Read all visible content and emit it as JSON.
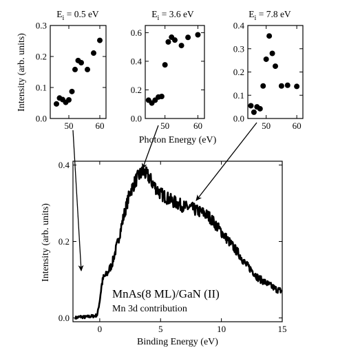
{
  "figure": {
    "inset_shared_xlabel": "Photon Energy (eV)",
    "inset_shared_ylabel": "Intensity (arb. units)",
    "arrows": "each inset linked to its initial-state energy on the main spectrum"
  },
  "chart_data": [
    {
      "type": "scatter",
      "title_prefix": "E",
      "title_sub": "i",
      "title_value": " = 0.5 eV",
      "xlim": [
        44,
        62
      ],
      "ylim": [
        0,
        0.3
      ],
      "xticks": [
        50,
        60
      ],
      "xtick_labels": [
        "50",
        "60"
      ],
      "yticks": [
        0,
        0.1,
        0.2,
        0.3
      ],
      "ytick_labels": [
        "0.0",
        "0.1",
        "0.2",
        "0.3"
      ],
      "x": [
        46,
        47,
        48,
        49,
        50,
        51,
        52,
        53,
        54,
        56,
        58,
        60
      ],
      "y": [
        0.047,
        0.066,
        0.061,
        0.052,
        0.06,
        0.087,
        0.158,
        0.187,
        0.18,
        0.158,
        0.211,
        0.252
      ]
    },
    {
      "type": "scatter",
      "title_prefix": "E",
      "title_sub": "i",
      "title_value": " = 3.6 eV",
      "xlim": [
        44,
        62
      ],
      "ylim": [
        0,
        0.65
      ],
      "xticks": [
        50,
        60
      ],
      "xtick_labels": [
        "50",
        "60"
      ],
      "yticks": [
        0,
        0.2,
        0.4,
        0.6
      ],
      "ytick_labels": [
        "0.0",
        "0.2",
        "0.4",
        "0.6"
      ],
      "x": [
        45,
        46,
        47,
        48,
        49,
        50,
        51,
        52,
        53,
        55,
        57,
        60
      ],
      "y": [
        0.128,
        0.108,
        0.128,
        0.15,
        0.154,
        0.375,
        0.535,
        0.568,
        0.548,
        0.51,
        0.567,
        0.585
      ]
    },
    {
      "type": "scatter",
      "title_prefix": "E",
      "title_sub": "i",
      "title_value": " = 7.8 eV",
      "xlim": [
        44,
        62
      ],
      "ylim": [
        0,
        0.4
      ],
      "xticks": [
        50,
        60
      ],
      "xtick_labels": [
        "50",
        "60"
      ],
      "yticks": [
        0,
        0.1,
        0.2,
        0.3,
        0.4
      ],
      "ytick_labels": [
        "0.0",
        "0.1",
        "0.2",
        "0.3",
        "0.4"
      ],
      "x": [
        45,
        46,
        47,
        48,
        49,
        50,
        51,
        52,
        53,
        55,
        57,
        60
      ],
      "y": [
        0.055,
        0.027,
        0.05,
        0.042,
        0.14,
        0.255,
        0.355,
        0.28,
        0.225,
        0.14,
        0.143,
        0.138
      ]
    },
    {
      "type": "line",
      "xlabel": "Binding Energy (eV)",
      "ylabel": "Intensity (arb. units)",
      "annotation_main": "MnAs(8 ML)/GaN (II)",
      "annotation_sub": "Mn 3d contribution",
      "xlim": [
        -2.2,
        15
      ],
      "ylim": [
        -0.01,
        0.41
      ],
      "xticks": [
        0,
        5,
        10,
        15
      ],
      "xtick_labels": [
        "0",
        "5",
        "10",
        "15"
      ],
      "yticks": [
        0,
        0.2,
        0.4
      ],
      "ytick_labels": [
        "0.0",
        "0.2",
        "0.4"
      ],
      "series": [
        {
          "x": [
            -2.0,
            -1.6,
            -1.2,
            -0.8,
            -0.4,
            -0.2,
            0.0,
            0.15,
            0.3,
            0.6,
            1.0,
            1.5,
            2.0,
            2.5,
            3.0,
            3.3,
            3.6,
            4.0,
            4.5,
            5.0,
            5.5,
            6.0,
            6.5,
            7.0,
            7.5,
            8.0,
            8.5,
            9.0,
            9.5,
            10.0,
            10.5,
            11.0,
            11.5,
            12.0,
            12.5,
            13.0,
            13.5,
            14.0,
            14.5,
            15.0
          ],
          "y": [
            0.0,
            0.003,
            0.002,
            0.004,
            0.005,
            0.008,
            0.045,
            0.085,
            0.105,
            0.115,
            0.14,
            0.2,
            0.27,
            0.33,
            0.362,
            0.375,
            0.382,
            0.37,
            0.345,
            0.325,
            0.315,
            0.305,
            0.298,
            0.29,
            0.288,
            0.28,
            0.275,
            0.265,
            0.245,
            0.225,
            0.205,
            0.185,
            0.165,
            0.14,
            0.125,
            0.105,
            0.095,
            0.085,
            0.075,
            0.07
          ]
        }
      ]
    }
  ]
}
